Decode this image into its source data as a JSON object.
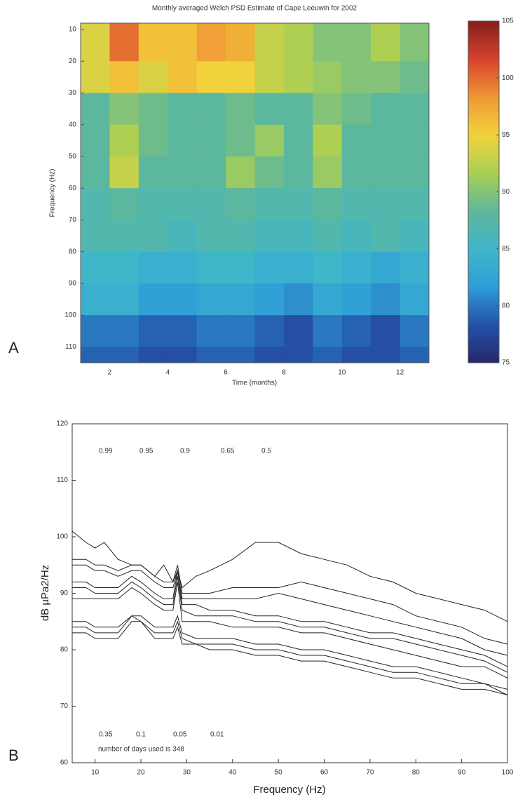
{
  "chart_data": [
    {
      "type": "heatmap",
      "panel": "A",
      "title": "Monthly averaged Welch PSD Estimate of Cape Leeuwin for 2002",
      "xlabel": "Time (months)",
      "ylabel": "Frequency (Hz)",
      "x_bins": [
        1,
        2,
        3,
        4,
        5,
        6,
        7,
        8,
        9,
        10,
        11,
        12,
        13
      ],
      "y_bins": [
        8,
        20,
        30,
        40,
        50,
        60,
        70,
        80,
        90,
        100,
        110,
        115
      ],
      "xlim": [
        1,
        13
      ],
      "ylim": [
        8,
        115
      ],
      "y_inverted": true,
      "xticks": [
        2,
        4,
        6,
        8,
        10,
        12
      ],
      "yticks": [
        10,
        20,
        30,
        40,
        50,
        60,
        70,
        80,
        90,
        100,
        110
      ],
      "z": [
        [
          94,
          100,
          96,
          96,
          98,
          97,
          93,
          92,
          90,
          90,
          92,
          90
        ],
        [
          94,
          96,
          94,
          96,
          95,
          95,
          93,
          92,
          91,
          90,
          90,
          89
        ],
        [
          88,
          90,
          89,
          88,
          88,
          89,
          88,
          88,
          90,
          89,
          88,
          88
        ],
        [
          88,
          92,
          89,
          88,
          88,
          89,
          91,
          88,
          92,
          88,
          88,
          88
        ],
        [
          88,
          93,
          88,
          88,
          88,
          91,
          89,
          88,
          91,
          88,
          88,
          88
        ],
        [
          87,
          88,
          87,
          87,
          87,
          88,
          87,
          87,
          88,
          87,
          87,
          87
        ],
        [
          87,
          87,
          87,
          86,
          87,
          87,
          86,
          86,
          87,
          86,
          87,
          86
        ],
        [
          85,
          85,
          84,
          84,
          85,
          85,
          84,
          84,
          85,
          84,
          83,
          84
        ],
        [
          84,
          84,
          82,
          82,
          83,
          83,
          82,
          81,
          83,
          82,
          81,
          83
        ],
        [
          80,
          80,
          79,
          79,
          80,
          80,
          79,
          78,
          80,
          79,
          78,
          80
        ],
        [
          79,
          79,
          78,
          78,
          79,
          79,
          78,
          78,
          79,
          78,
          78,
          79
        ]
      ],
      "clim": [
        75,
        105
      ],
      "colorbar_ticks": [
        75,
        80,
        85,
        90,
        95,
        100,
        105
      ],
      "colormap": [
        "#25296e",
        "#2453a8",
        "#2f9ed8",
        "#3fb6c9",
        "#5fb79a",
        "#a8cf55",
        "#f1d23c",
        "#f09a35",
        "#d8442c",
        "#8a1f1f"
      ]
    },
    {
      "type": "line",
      "panel": "B",
      "xlabel": "Frequency (Hz)",
      "ylabel": "dB µPa2/Hz",
      "xlim": [
        5,
        100
      ],
      "ylim": [
        60,
        120
      ],
      "xticks": [
        10,
        20,
        30,
        40,
        50,
        60,
        70,
        80,
        90,
        100
      ],
      "yticks": [
        60,
        70,
        80,
        90,
        100,
        110,
        120
      ],
      "note": "number of days used is 348",
      "x": [
        5,
        8,
        10,
        12,
        15,
        18,
        20,
        23,
        25,
        27,
        28,
        29,
        32,
        35,
        40,
        45,
        50,
        55,
        60,
        65,
        70,
        75,
        80,
        85,
        90,
        95,
        100
      ],
      "series": [
        {
          "name": "0.99",
          "color": "#222222",
          "values": [
            101,
            99,
            98,
            99,
            96,
            95,
            95,
            93,
            95,
            92,
            94,
            91,
            93,
            94,
            96,
            99,
            99,
            97,
            96,
            95,
            93,
            92,
            90,
            89,
            88,
            87,
            85
          ]
        },
        {
          "name": "0.95",
          "color": "#222222",
          "values": [
            96,
            96,
            95,
            95,
            94,
            95,
            95,
            93,
            92,
            92,
            95,
            90,
            90,
            90,
            91,
            91,
            91,
            92,
            91,
            90,
            89,
            88,
            86,
            85,
            84,
            82,
            81
          ]
        },
        {
          "name": "0.9",
          "color": "#222222",
          "values": [
            95,
            95,
            94,
            94,
            93,
            94,
            94,
            92,
            91,
            91,
            94,
            89,
            89,
            89,
            89,
            89,
            90,
            89,
            88,
            87,
            86,
            85,
            84,
            83,
            82,
            80,
            79
          ]
        },
        {
          "name": "0.65",
          "color": "#222222",
          "values": [
            92,
            92,
            91,
            91,
            91,
            93,
            92,
            90,
            89,
            89,
            94,
            88,
            88,
            87,
            87,
            86,
            86,
            85,
            85,
            84,
            83,
            83,
            82,
            81,
            80,
            79,
            77
          ]
        },
        {
          "name": "0.5",
          "color": "#222222",
          "values": [
            91,
            91,
            90,
            90,
            90,
            92,
            91,
            89,
            88,
            88,
            93,
            87,
            86,
            86,
            86,
            85,
            85,
            84,
            84,
            83,
            82,
            82,
            81,
            80,
            79,
            78,
            76
          ]
        },
        {
          "name": "0.35",
          "color": "#222222",
          "values": [
            89,
            89,
            89,
            89,
            89,
            91,
            90,
            88,
            87,
            87,
            92,
            85,
            85,
            85,
            84,
            84,
            84,
            83,
            83,
            82,
            81,
            80,
            79,
            78,
            77,
            77,
            75
          ]
        },
        {
          "name": "0.1",
          "color": "#222222",
          "values": [
            85,
            85,
            84,
            84,
            84,
            86,
            86,
            84,
            84,
            84,
            86,
            83,
            82,
            82,
            82,
            81,
            81,
            80,
            80,
            79,
            78,
            77,
            77,
            76,
            75,
            74,
            73
          ]
        },
        {
          "name": "0.05",
          "color": "#222222",
          "values": [
            84,
            84,
            83,
            83,
            83,
            86,
            85,
            83,
            83,
            83,
            85,
            82,
            81,
            81,
            81,
            80,
            80,
            79,
            79,
            78,
            77,
            76,
            76,
            75,
            74,
            74,
            72
          ]
        },
        {
          "name": "0.01",
          "color": "#222222",
          "values": [
            83,
            83,
            82,
            82,
            82,
            85,
            85,
            82,
            82,
            82,
            84,
            81,
            81,
            80,
            80,
            79,
            79,
            78,
            78,
            77,
            76,
            75,
            75,
            74,
            73,
            73,
            72
          ]
        }
      ]
    }
  ]
}
